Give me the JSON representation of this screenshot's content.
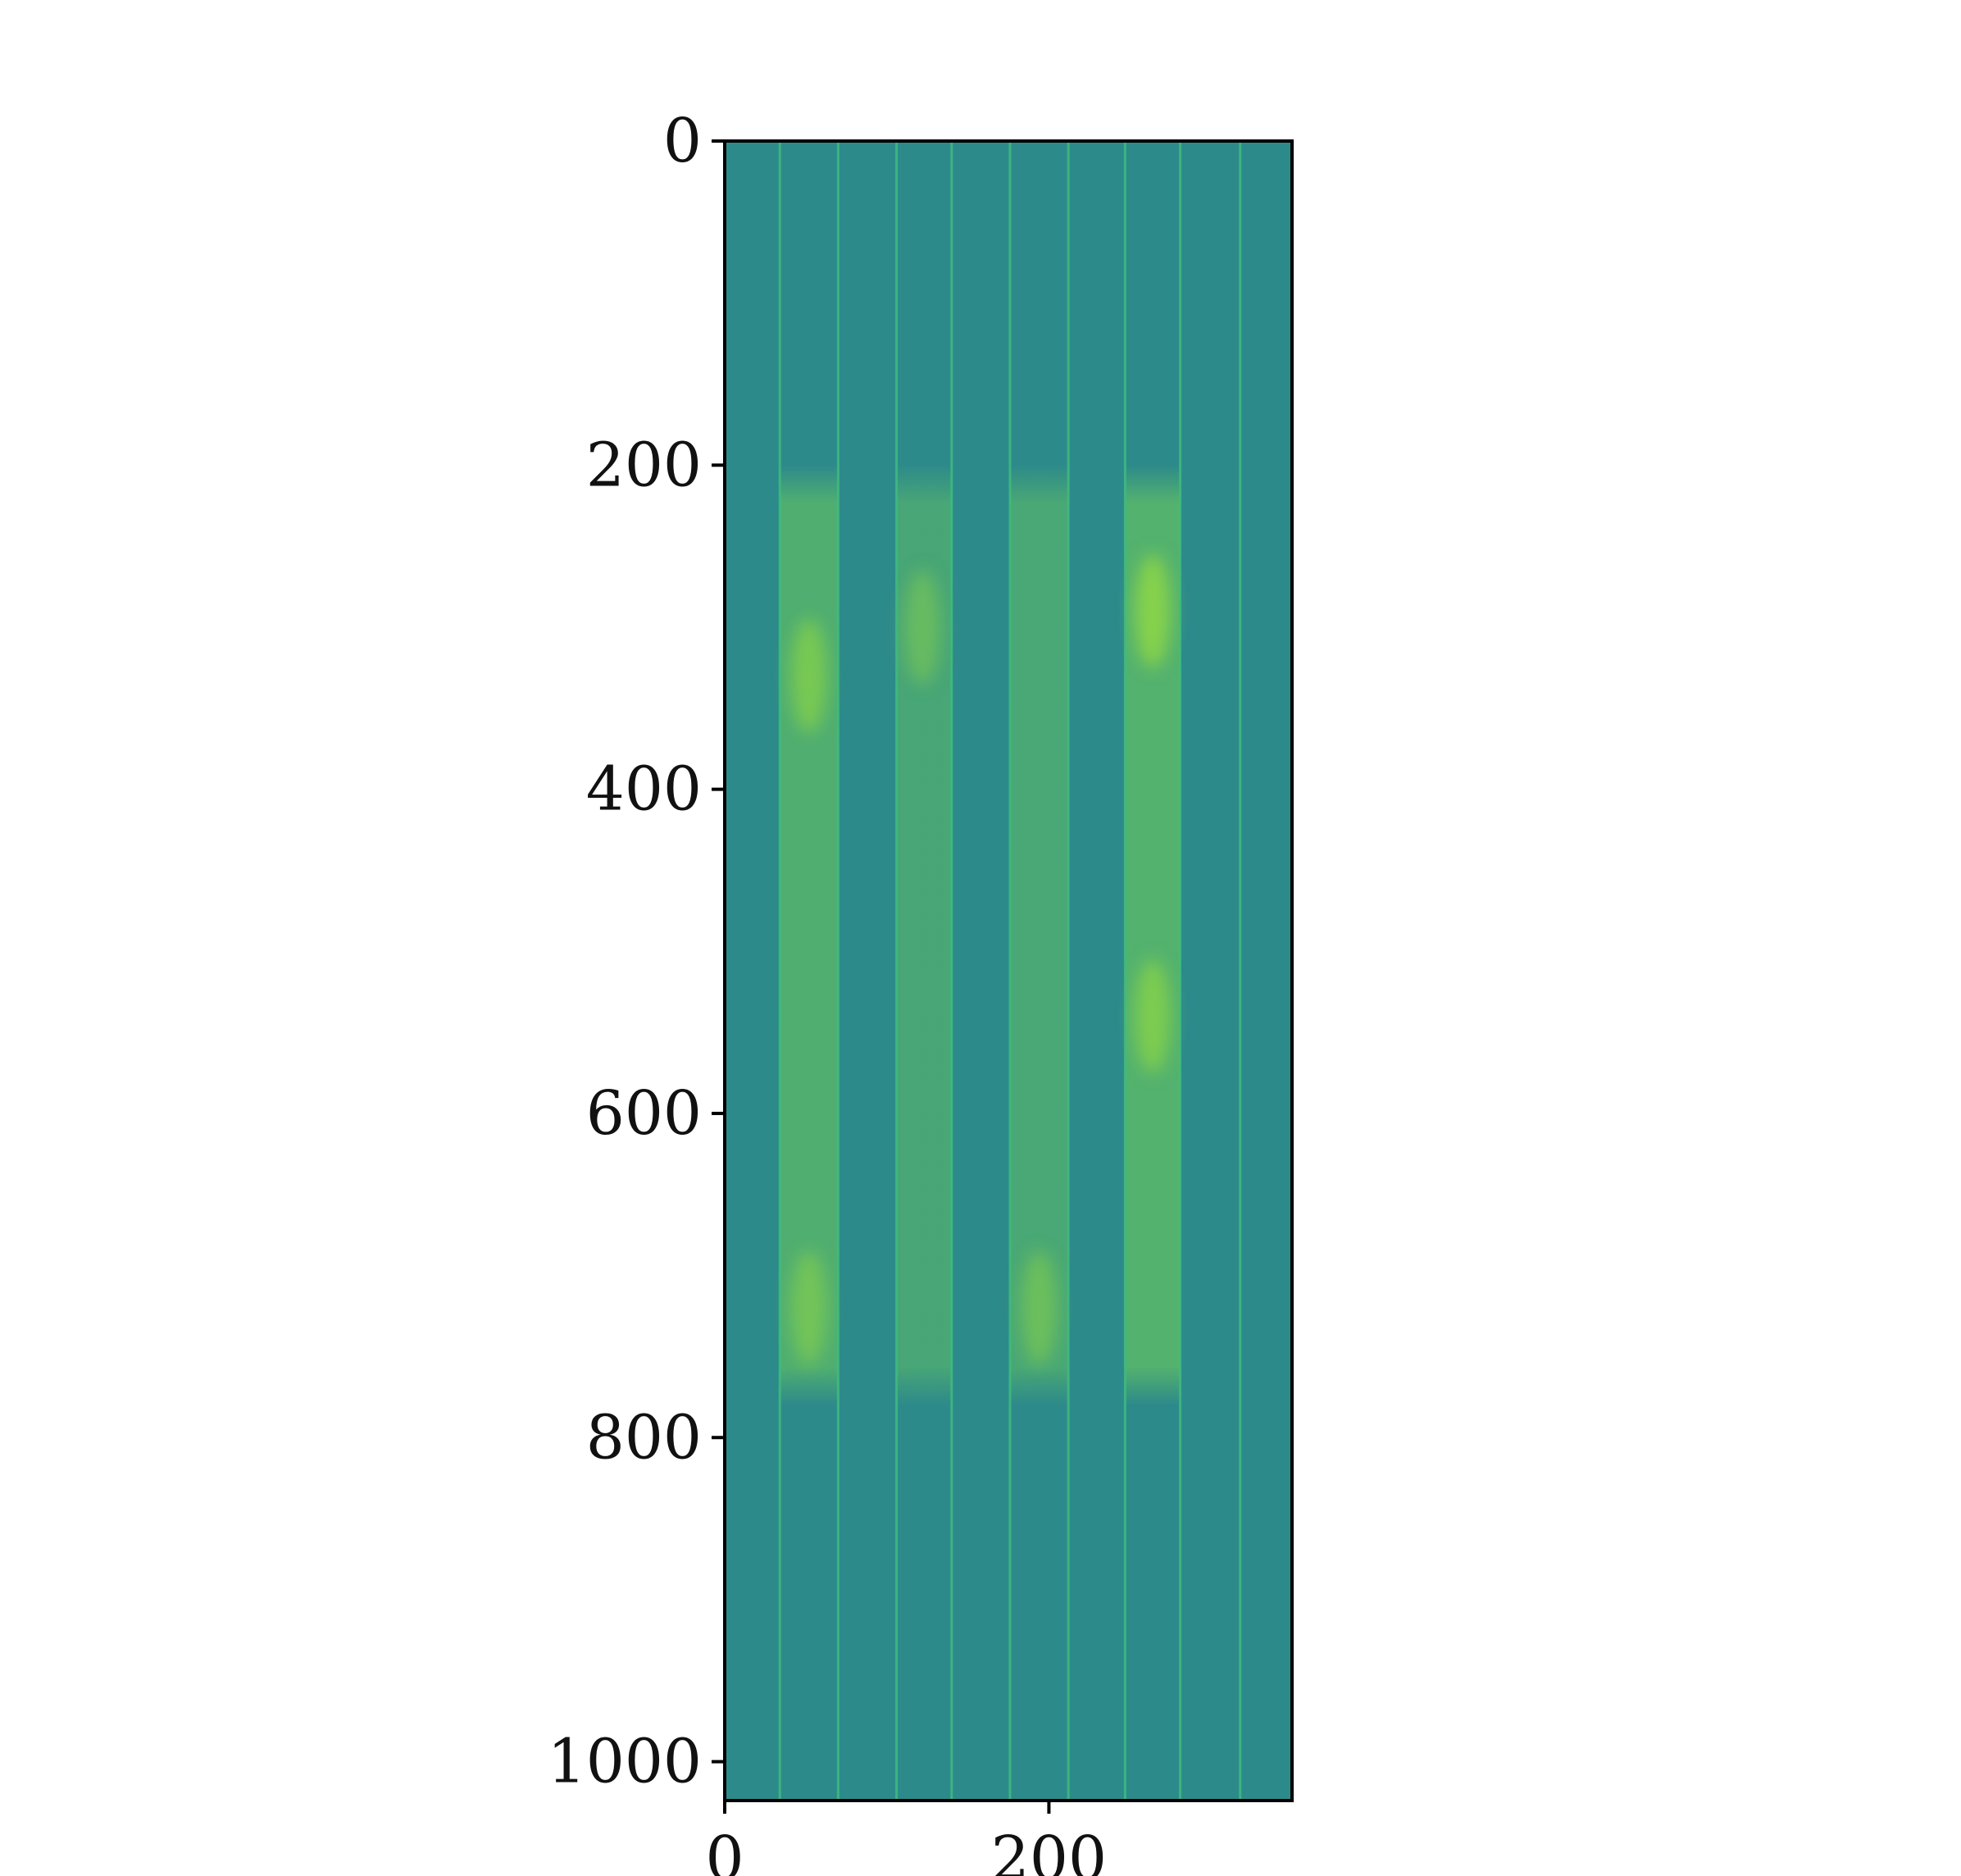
{
  "chart_data": {
    "type": "heatmap",
    "title": "",
    "xlabel": "",
    "ylabel": "",
    "xlim": [
      0,
      350
    ],
    "ylim": [
      1024,
      0
    ],
    "x_ticks": [
      0,
      200
    ],
    "y_ticks": [
      0,
      200,
      400,
      600,
      800,
      1000
    ],
    "x_tick_labels": [
      "0",
      "200"
    ],
    "y_tick_labels": [
      "0",
      "200",
      "400",
      "600",
      "800",
      "1000"
    ],
    "colormap": "viridis",
    "colors": {
      "background_cell": "#2d8a8a",
      "grid_line": "#3fbf7f",
      "medium": "#37a27e",
      "bright": "#8fd744",
      "axis": "#000000"
    },
    "vertical_lines_x": [
      34,
      70,
      106,
      140,
      176,
      212,
      247,
      281,
      318
    ],
    "active_time_range": [
      200,
      780
    ],
    "bands": [
      {
        "x_start": 34,
        "x_end": 70,
        "intensity": 0.55
      },
      {
        "x_start": 106,
        "x_end": 140,
        "intensity": 0.42
      },
      {
        "x_start": 176,
        "x_end": 212,
        "intensity": 0.45
      },
      {
        "x_start": 247,
        "x_end": 281,
        "intensity": 0.6
      }
    ],
    "highlights": [
      {
        "x": 264,
        "y": 290,
        "intensity": 0.85
      },
      {
        "x": 52,
        "y": 330,
        "intensity": 0.65
      },
      {
        "x": 264,
        "y": 540,
        "intensity": 0.7
      },
      {
        "x": 52,
        "y": 720,
        "intensity": 0.55
      },
      {
        "x": 194,
        "y": 720,
        "intensity": 0.5
      },
      {
        "x": 122,
        "y": 300,
        "intensity": 0.45
      }
    ]
  }
}
